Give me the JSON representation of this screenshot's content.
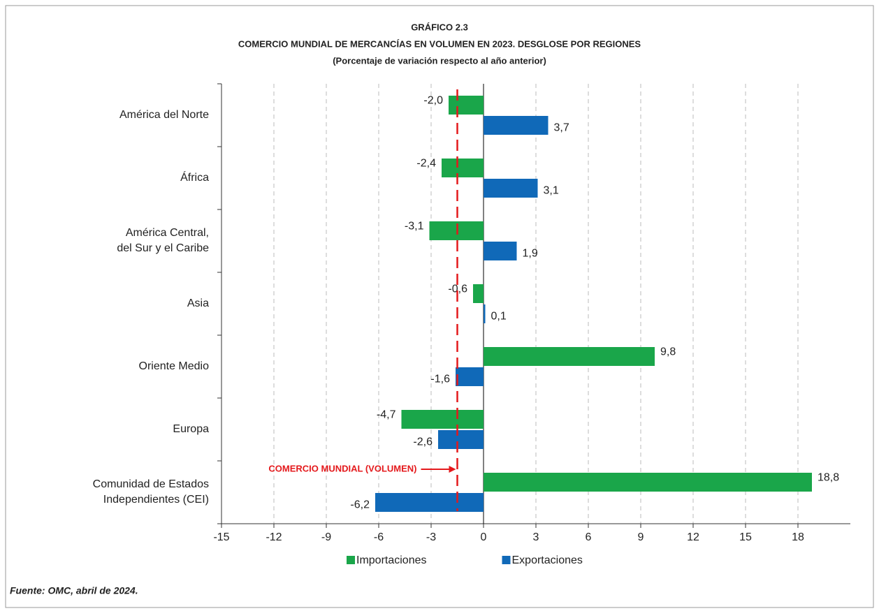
{
  "chart_data": {
    "type": "hbar",
    "title": "GRÁFICO 2.3",
    "subtitle": "COMERCIO MUNDIAL DE MERCANCÍAS EN VOLUMEN EN 2023. DESGLOSE POR REGIONES",
    "units": "(Porcentaje de variación respecto al año anterior)",
    "categories": [
      "América del Norte",
      "África",
      "América Central,\ndel Sur y el Caribe",
      "Asia",
      "Oriente Medio",
      "Europa",
      "Comunidad de Estados\nIndependientes (CEI)"
    ],
    "series": [
      {
        "name": "Importaciones",
        "color": "#1aa64a",
        "values": [
          -2.0,
          -2.4,
          -3.1,
          -0.6,
          9.8,
          -4.7,
          18.8
        ],
        "value_labels": [
          "-2,0",
          "-2,4",
          "-3,1",
          "-0,6",
          "9,8",
          "-4,7",
          "18,8"
        ]
      },
      {
        "name": "Exportaciones",
        "color": "#1069b8",
        "values": [
          3.7,
          3.1,
          1.9,
          0.1,
          -1.6,
          -2.6,
          -6.2
        ],
        "value_labels": [
          "3,7",
          "3,1",
          "1,9",
          "0,1",
          "-1,6",
          "-2,6",
          "-6,2"
        ]
      }
    ],
    "xlim": [
      -15,
      21
    ],
    "xticks": [
      -15,
      -12,
      -9,
      -6,
      -3,
      0,
      3,
      6,
      9,
      12,
      15,
      18
    ],
    "grid": true,
    "reference_line": {
      "value": -1.5,
      "label": "COMERCIO MUNDIAL (VOLUMEN)",
      "color": "#e4191c"
    },
    "source": "Fuente: OMC, abril de 2024."
  }
}
